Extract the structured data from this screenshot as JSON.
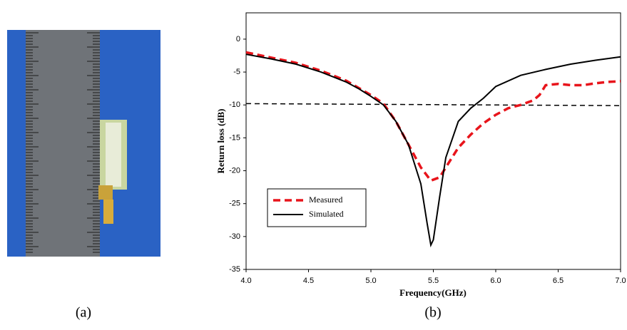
{
  "chart_data": {
    "type": "line",
    "xlabel": "Frequency(GHz)",
    "ylabel": "Return loss (dB)",
    "xlim": [
      4,
      7
    ],
    "ylim": [
      -35,
      4
    ],
    "xticks": [
      {
        "value": 4,
        "label": "4.0"
      },
      4.5,
      {
        "value": 5,
        "label": "5.0"
      },
      5.5,
      {
        "value": 6,
        "label": "6.0"
      },
      6.5,
      {
        "value": 7,
        "label": "7.0"
      }
    ],
    "yticks": [
      0,
      -5,
      -10,
      -15,
      -20,
      -25,
      -30,
      -35
    ],
    "legend": "lower-left",
    "series": [
      {
        "name": "Measured",
        "color": "#e8141b",
        "dash": true,
        "x": [
          4.0,
          4.2,
          4.4,
          4.6,
          4.8,
          5.0,
          5.1,
          5.2,
          5.3,
          5.4,
          5.48,
          5.55,
          5.6,
          5.7,
          5.8,
          5.9,
          6.0,
          6.1,
          6.2,
          6.3,
          6.35,
          6.4,
          6.5,
          6.6,
          6.7,
          6.8,
          6.9,
          7.0
        ],
        "values": [
          -2.0,
          -2.8,
          -3.6,
          -4.8,
          -6.3,
          -8.5,
          -9.8,
          -12.5,
          -16,
          -19.5,
          -21.5,
          -21,
          -19.5,
          -16.5,
          -14.5,
          -12.8,
          -11.5,
          -10.5,
          -10.0,
          -9.3,
          -8.5,
          -7.0,
          -6.8,
          -7.0,
          -7.0,
          -6.7,
          -6.5,
          -6.4
        ]
      },
      {
        "name": "Simulated",
        "color": "#000000",
        "dash": false,
        "x": [
          4.0,
          4.2,
          4.4,
          4.6,
          4.8,
          4.9,
          5.0,
          5.1,
          5.2,
          5.3,
          5.4,
          5.45,
          5.48,
          5.5,
          5.55,
          5.6,
          5.7,
          5.8,
          5.9,
          6.0,
          6.2,
          6.4,
          6.6,
          6.8,
          7.0
        ],
        "values": [
          -2.3,
          -3.0,
          -3.8,
          -5.0,
          -6.5,
          -7.5,
          -8.7,
          -10.0,
          -12.5,
          -16,
          -22,
          -28,
          -31.3,
          -30.5,
          -24,
          -18,
          -12.5,
          -10.5,
          -9.0,
          -7.2,
          -5.5,
          -4.6,
          -3.8,
          -3.2,
          -2.7
        ]
      }
    ],
    "threshold": {
      "x": [
        4,
        7
      ],
      "values": [
        -9.8,
        -10.1
      ],
      "color": "#000000"
    }
  },
  "captions": [
    "(a)",
    "(b)"
  ]
}
